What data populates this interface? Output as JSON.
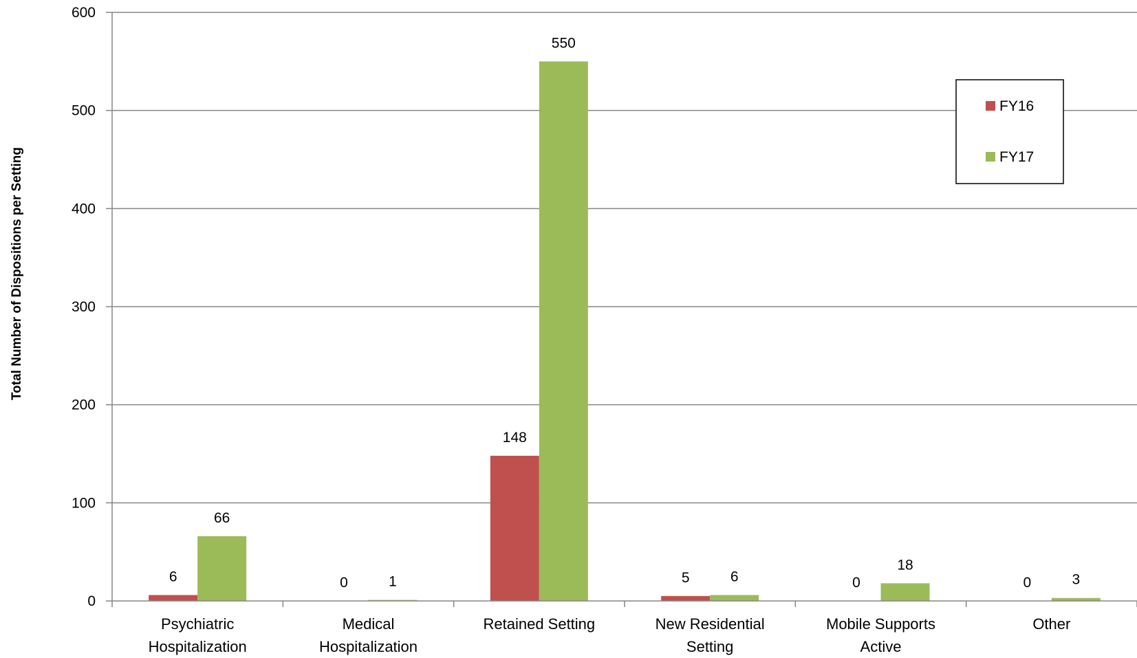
{
  "chart_data": {
    "type": "bar",
    "title": "",
    "xlabel": "",
    "ylabel": "Total Number of Dispositions per Setting",
    "ylim": [
      0,
      600
    ],
    "yticks": [
      0,
      100,
      200,
      300,
      400,
      500,
      600
    ],
    "grid": true,
    "legend_position": "top-right",
    "categories": [
      [
        "Psychiatric",
        "Hospitalization"
      ],
      [
        "Medical",
        "Hospitalization"
      ],
      [
        "Retained Setting"
      ],
      [
        "New Residential",
        "Setting"
      ],
      [
        "Mobile Supports",
        "Active"
      ],
      [
        "Other"
      ]
    ],
    "series": [
      {
        "name": "FY16",
        "color": "#c0504d",
        "values": [
          6,
          0,
          148,
          5,
          0,
          0
        ]
      },
      {
        "name": "FY17",
        "color": "#9bbb59",
        "values": [
          66,
          1,
          550,
          6,
          18,
          3
        ]
      }
    ]
  }
}
